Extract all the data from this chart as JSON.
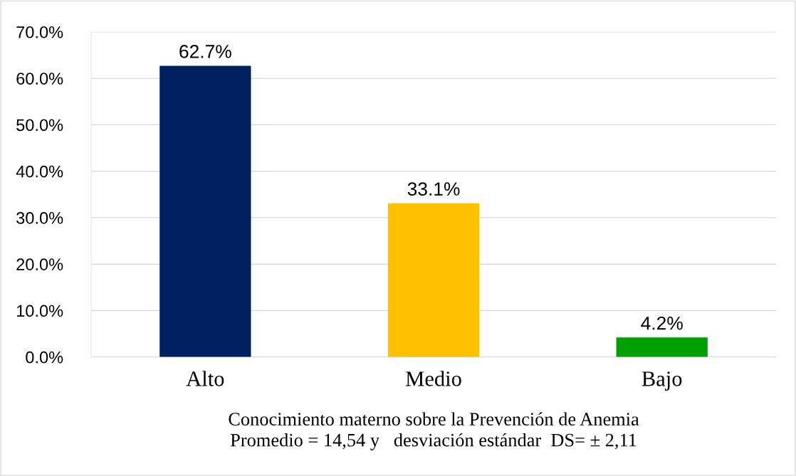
{
  "chart_data": {
    "type": "bar",
    "categories": [
      "Alto",
      "Medio",
      "Bajo"
    ],
    "values": [
      62.7,
      33.1,
      4.2
    ],
    "colors": [
      "#002060",
      "#ffc000",
      "#00a000"
    ],
    "value_labels": [
      "62.7%",
      "33.1%",
      "4.2%"
    ],
    "xlabel": "Conocimiento materno sobre la Prevención de Anemia\nPromedio = 14,54 y   desviación estándar  DS= ± 2,11",
    "ylim": [
      0,
      70
    ],
    "yticks": [
      {
        "value": 0,
        "label": "0.0%"
      },
      {
        "value": 10,
        "label": "10.0%"
      },
      {
        "value": 20,
        "label": "20.0%"
      },
      {
        "value": 30,
        "label": "30.0%"
      },
      {
        "value": 40,
        "label": "40.0%"
      },
      {
        "value": 50,
        "label": "50.0%"
      },
      {
        "value": 60,
        "label": "60.0%"
      },
      {
        "value": 70,
        "label": "70.0%"
      }
    ],
    "grid": "y"
  }
}
